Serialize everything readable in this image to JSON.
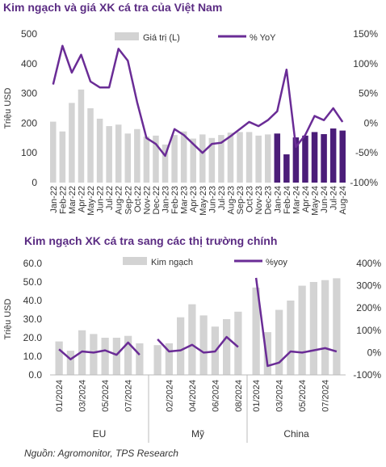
{
  "source": "Nguồn: Agromonitor, TPS Research",
  "colors": {
    "title": "#5b2c83",
    "bar_gray": "#d3d3d3",
    "bar_purple": "#4b1d79",
    "line": "#6a2c96"
  },
  "chart_data": [
    {
      "type": "bar",
      "title": "Kim ngạch và giá XK cá tra của Việt Nam",
      "ylabel": "Triệu USD",
      "ylim": [
        0,
        500
      ],
      "y_ticks": [
        "0",
        "100",
        "200",
        "300",
        "400",
        "500"
      ],
      "y2lim": [
        -100,
        150
      ],
      "y2_ticks": [
        "-100%",
        "-50%",
        "0%",
        "50%",
        "100%",
        "150%"
      ],
      "categories": [
        "Jan-22",
        "Feb-22",
        "Mar-22",
        "Apr-22",
        "May-22",
        "Jun-22",
        "Jul-22",
        "Aug-22",
        "Sep-22",
        "Oct-22",
        "Nov-22",
        "Dec-22",
        "Jan-23",
        "Feb-23",
        "Mar-23",
        "Apr-23",
        "May-23",
        "Jun-23",
        "Jul-23",
        "Aug-23",
        "Sep-23",
        "Oct-23",
        "Nov-23",
        "Dec-23",
        "Jan-24",
        "Feb-24",
        "Mar-24",
        "Apr-24",
        "May-24",
        "Jun-24",
        "Jul-24",
        "Aug-24"
      ],
      "legend_position": "top",
      "series": [
        {
          "name": "Giá trị (L)",
          "kind": "bar",
          "axis": "left",
          "values": [
            205,
            172,
            268,
            313,
            250,
            215,
            190,
            195,
            165,
            180,
            155,
            158,
            128,
            160,
            172,
            148,
            162,
            150,
            160,
            168,
            170,
            170,
            158,
            162,
            165,
            95,
            152,
            158,
            170,
            163,
            182,
            175
          ]
        },
        {
          "name": "% YoY",
          "kind": "line",
          "axis": "right",
          "values": [
            65,
            130,
            85,
            115,
            70,
            60,
            60,
            125,
            105,
            35,
            -25,
            -35,
            -55,
            -10,
            -20,
            -35,
            -50,
            -35,
            -33,
            -22,
            -10,
            2,
            -5,
            5,
            20,
            90,
            -40,
            -20,
            12,
            5,
            25,
            2
          ]
        }
      ],
      "highlight_from_index": 24
    },
    {
      "type": "bar",
      "title": "Kim ngạch XK cá tra sang các thị trường chính",
      "ylabel": "Triệu USD",
      "ylim": [
        0,
        60
      ],
      "y_ticks": [
        "0.0",
        "10.0",
        "20.0",
        "30.0",
        "40.0",
        "50.0",
        "60.0"
      ],
      "y2lim": [
        -100,
        400
      ],
      "y2_ticks": [
        "-100%",
        "0%",
        "100%",
        "200%",
        "300%",
        "400%"
      ],
      "legend_position": "top",
      "groups": [
        {
          "name": "EU",
          "labels": [
            "01/2024",
            "02/2024",
            "03/2024",
            "04/2024",
            "05/2024",
            "06/2024",
            "07/2024",
            "08/2024"
          ],
          "bars": [
            18,
            13,
            24,
            22,
            20,
            20,
            21,
            17
          ],
          "yoy": [
            15,
            -30,
            5,
            0,
            10,
            -10,
            45,
            -10
          ]
        },
        {
          "name": "Mỹ",
          "labels": [
            "01/2024",
            "02/2024",
            "03/2024",
            "04/2024",
            "05/2024",
            "06/2024",
            "07/2024",
            "08/2024"
          ],
          "bars": [
            16,
            17,
            31,
            38,
            32,
            26,
            30,
            34
          ],
          "yoy": [
            60,
            5,
            10,
            35,
            0,
            5,
            70,
            25
          ]
        },
        {
          "name": "China",
          "labels": [
            "01/2024",
            "02/2024",
            "03/2024",
            "04/2024",
            "05/2024",
            "06/2024",
            "07/2024",
            "08/2024"
          ],
          "bars": [
            47,
            23,
            35,
            40,
            48,
            50,
            51,
            52
          ],
          "yoy": [
            335,
            -60,
            -45,
            5,
            0,
            10,
            20,
            5
          ]
        }
      ],
      "x_tick_labels": {
        "EU": [
          "01/2024",
          "03/2024",
          "05/2024",
          "07/2024"
        ],
        "Mỹ": [
          "02/2024",
          "04/2024",
          "06/2024",
          "08/2024"
        ],
        "China": [
          "01/2024",
          "03/2024",
          "05/2024",
          "07/2024"
        ]
      },
      "series_names": {
        "bars": "Kim ngạch",
        "line": "%yoy"
      }
    }
  ]
}
